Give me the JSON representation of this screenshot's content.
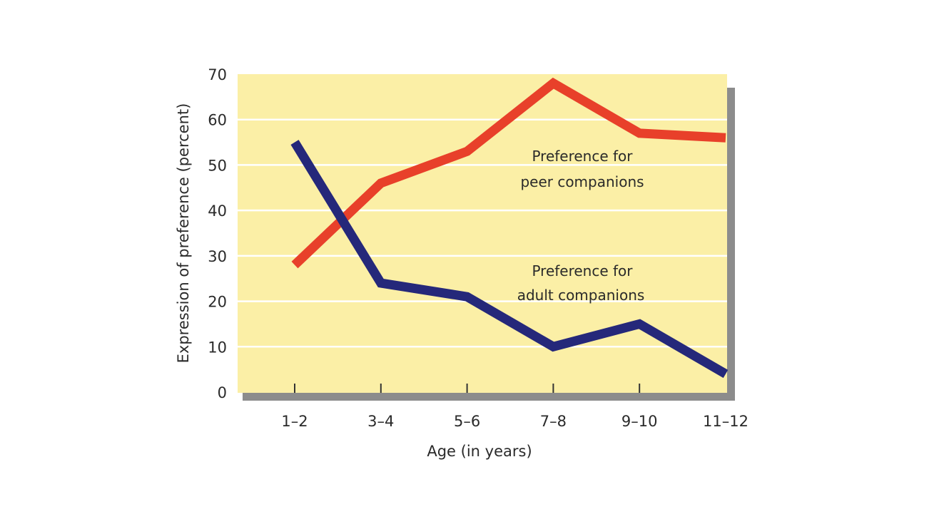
{
  "chart_data": {
    "type": "line",
    "title": "",
    "xlabel": "Age (in years)",
    "ylabel": "Expression of preference (percent)",
    "categories": [
      "1–2",
      "3–4",
      "5–6",
      "7–8",
      "9–10",
      "11–12"
    ],
    "ylim": [
      0,
      70
    ],
    "yticks": [
      0,
      10,
      20,
      30,
      40,
      50,
      60,
      70
    ],
    "grid": true,
    "series": [
      {
        "name": "Preference for peer companions",
        "label_lines": [
          "Preference for",
          "peer companions"
        ],
        "color": "#e8402a",
        "values": [
          28,
          46,
          53,
          68,
          57,
          56
        ]
      },
      {
        "name": "Preference for adult companions",
        "label_lines": [
          "Preference for",
          "adult companions"
        ],
        "color": "#25287a",
        "values": [
          55,
          24,
          21,
          10,
          15,
          4
        ]
      }
    ],
    "background_color": "#fbefa6",
    "grid_color": "#ffffff",
    "shadow_color": "#8c8c8c"
  }
}
